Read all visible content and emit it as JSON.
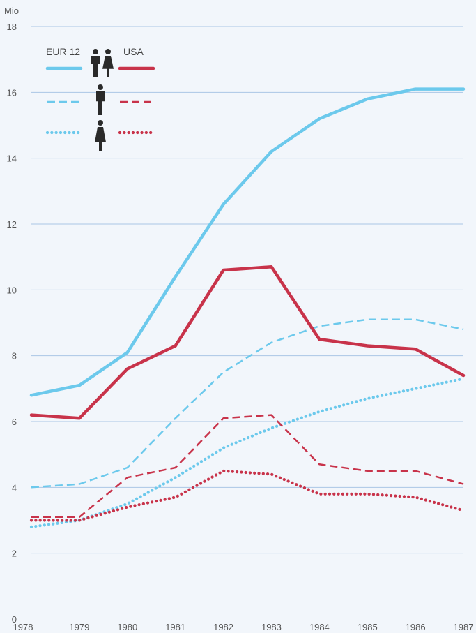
{
  "chart_data": {
    "type": "line",
    "unit_label": "Mio",
    "x": [
      1978,
      1979,
      1980,
      1981,
      1982,
      1983,
      1984,
      1985,
      1986,
      1987
    ],
    "x_tick_labels": [
      "1978",
      "1979",
      "1980",
      "1981",
      "1982",
      "1983",
      "1984",
      "1985",
      "1986",
      "1987"
    ],
    "ylim": [
      0,
      18
    ],
    "y_ticks": [
      0,
      2,
      4,
      6,
      8,
      10,
      12,
      14,
      16,
      18
    ],
    "grid": true,
    "legend_placement": "top-left",
    "legend": {
      "left_header": "EUR 12",
      "right_header": "USA",
      "rows": [
        "total",
        "men",
        "women"
      ]
    },
    "colors": {
      "eur12": "#6cc9ec",
      "usa": "#c8334a",
      "grid": "#aac6e6",
      "background": "#f2f6fb",
      "figure": "#2a2a2a"
    },
    "series": [
      {
        "group": "EUR 12",
        "row": "total",
        "style": "solid",
        "values": [
          6.8,
          7.1,
          8.1,
          10.4,
          12.6,
          14.2,
          15.2,
          15.8,
          16.1,
          16.1
        ]
      },
      {
        "group": "EUR 12",
        "row": "men",
        "style": "dashed",
        "values": [
          4.0,
          4.1,
          4.6,
          6.1,
          7.5,
          8.4,
          8.9,
          9.1,
          9.1,
          8.8
        ]
      },
      {
        "group": "EUR 12",
        "row": "women",
        "style": "dotted",
        "values": [
          2.8,
          3.0,
          3.5,
          4.3,
          5.2,
          5.8,
          6.3,
          6.7,
          7.0,
          7.3
        ]
      },
      {
        "group": "USA",
        "row": "total",
        "style": "solid",
        "values": [
          6.2,
          6.1,
          7.6,
          8.3,
          10.6,
          10.7,
          8.5,
          8.3,
          8.2,
          7.4
        ]
      },
      {
        "group": "USA",
        "row": "men",
        "style": "dashed",
        "values": [
          3.1,
          3.1,
          4.3,
          4.6,
          6.1,
          6.2,
          4.7,
          4.5,
          4.5,
          4.1
        ]
      },
      {
        "group": "USA",
        "row": "women",
        "style": "dotted",
        "values": [
          3.0,
          3.0,
          3.4,
          3.7,
          4.5,
          4.4,
          3.8,
          3.8,
          3.7,
          3.3
        ]
      }
    ]
  }
}
